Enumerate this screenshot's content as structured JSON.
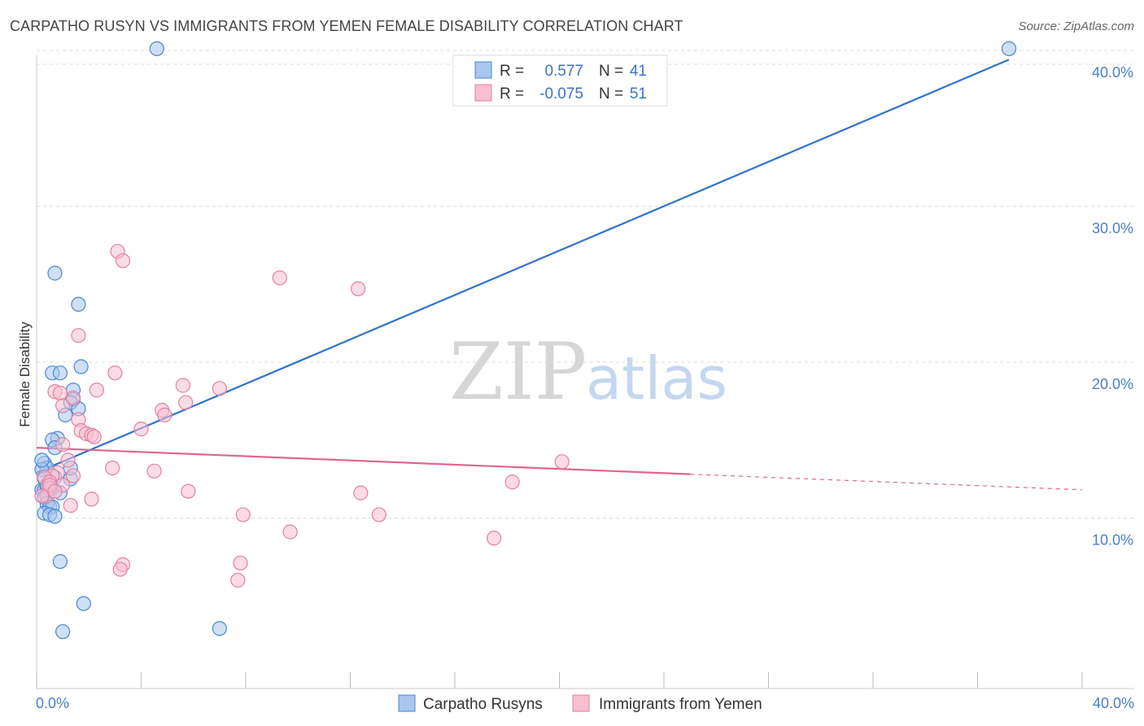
{
  "header": {
    "title": "CARPATHO RUSYN VS IMMIGRANTS FROM YEMEN FEMALE DISABILITY CORRELATION CHART",
    "source": "Source: ZipAtlas.com"
  },
  "watermark": {
    "zip": "ZIP",
    "atlas": "atlas"
  },
  "legend": {
    "rows": [
      {
        "r_label": "R =",
        "r_value": "0.577",
        "n_label": "N =",
        "n_value": "41"
      },
      {
        "r_label": "R =",
        "r_value": "-0.075",
        "n_label": "N =",
        "n_value": "51"
      }
    ]
  },
  "bottom_legend": {
    "series1": "Carpatho Rusyns",
    "series2": "Immigrants from Yemen"
  },
  "colors": {
    "blue_fill": "#a8c6ee",
    "blue_stroke": "#4a86d6",
    "blue_line": "#2f72cc",
    "pink_fill": "#f7bfd0",
    "pink_stroke": "#e57fa0",
    "pink_line": "#e0648f",
    "grid": "#dddddd",
    "axis_text": "#4a7ec9"
  },
  "chart_data": {
    "type": "scatter",
    "title": "CARPATHO RUSYN VS IMMIGRANTS FROM YEMEN FEMALE DISABILITY CORRELATION CHART",
    "xlabel": "",
    "ylabel": "Female Disability",
    "xlim": [
      0,
      40
    ],
    "ylim": [
      0,
      40
    ],
    "x_tick_labels": [
      "0.0%",
      "40.0%"
    ],
    "y_ticks": [
      {
        "value": 10,
        "label": "10.0%"
      },
      {
        "value": 20,
        "label": "20.0%"
      },
      {
        "value": 30,
        "label": "30.0%"
      },
      {
        "value": 40,
        "label": "40.0%"
      }
    ],
    "series": [
      {
        "name": "Carpatho Rusyns",
        "r": 0.577,
        "n": 41,
        "trend": {
          "x0": 0.0,
          "y0": 13.8,
          "x1": 37.2,
          "y1": 40.3,
          "dashed_to": null
        },
        "points": [
          [
            4.6,
            41.0
          ],
          [
            37.2,
            41.0
          ],
          [
            0.7,
            26.6
          ],
          [
            1.6,
            24.6
          ],
          [
            1.7,
            20.6
          ],
          [
            0.6,
            20.2
          ],
          [
            0.9,
            20.2
          ],
          [
            1.4,
            19.1
          ],
          [
            1.4,
            18.5
          ],
          [
            1.3,
            18.3
          ],
          [
            1.6,
            17.9
          ],
          [
            1.1,
            17.5
          ],
          [
            0.8,
            16.0
          ],
          [
            0.6,
            15.9
          ],
          [
            0.7,
            15.4
          ],
          [
            0.3,
            14.4
          ],
          [
            0.4,
            14.1
          ],
          [
            0.2,
            14.0
          ],
          [
            0.7,
            13.5
          ],
          [
            1.3,
            13.4
          ],
          [
            0.2,
            12.7
          ],
          [
            0.3,
            12.7
          ],
          [
            0.5,
            12.8
          ],
          [
            0.6,
            12.8
          ],
          [
            0.9,
            12.5
          ],
          [
            0.3,
            12.2
          ],
          [
            0.4,
            11.8
          ],
          [
            0.5,
            11.6
          ],
          [
            0.6,
            11.6
          ],
          [
            0.3,
            11.2
          ],
          [
            0.5,
            11.1
          ],
          [
            0.7,
            11.0
          ],
          [
            1.3,
            14.1
          ],
          [
            0.4,
            12.9
          ],
          [
            0.2,
            14.6
          ],
          [
            0.9,
            8.1
          ],
          [
            1.8,
            5.4
          ],
          [
            1.0,
            3.6
          ],
          [
            7.0,
            3.8
          ],
          [
            0.3,
            13.4
          ],
          [
            0.4,
            13.0
          ]
        ]
      },
      {
        "name": "Immigrants from Yemen",
        "r": -0.075,
        "n": 51,
        "trend": {
          "x0": 0.0,
          "y0": 15.4,
          "x1": 25.0,
          "y1": 13.7,
          "dashed_to": {
            "x": 40.0,
            "y": 12.7
          }
        },
        "points": [
          [
            3.1,
            28.0
          ],
          [
            3.3,
            27.4
          ],
          [
            9.3,
            26.3
          ],
          [
            12.3,
            25.6
          ],
          [
            1.6,
            22.6
          ],
          [
            3.0,
            20.2
          ],
          [
            5.6,
            19.4
          ],
          [
            7.0,
            19.2
          ],
          [
            2.3,
            19.1
          ],
          [
            0.7,
            19.0
          ],
          [
            0.9,
            18.9
          ],
          [
            1.4,
            18.6
          ],
          [
            5.7,
            18.3
          ],
          [
            1.0,
            18.1
          ],
          [
            4.8,
            17.8
          ],
          [
            4.9,
            17.5
          ],
          [
            1.6,
            17.2
          ],
          [
            4.0,
            16.6
          ],
          [
            1.7,
            16.5
          ],
          [
            1.9,
            16.3
          ],
          [
            2.1,
            16.2
          ],
          [
            2.2,
            16.1
          ],
          [
            1.0,
            15.6
          ],
          [
            1.2,
            14.6
          ],
          [
            2.9,
            14.1
          ],
          [
            4.5,
            13.9
          ],
          [
            20.1,
            14.5
          ],
          [
            0.8,
            13.8
          ],
          [
            0.6,
            13.6
          ],
          [
            0.3,
            13.5
          ],
          [
            0.5,
            13.2
          ],
          [
            0.5,
            12.8
          ],
          [
            1.0,
            13.0
          ],
          [
            0.4,
            12.3
          ],
          [
            5.8,
            12.6
          ],
          [
            12.4,
            12.5
          ],
          [
            2.1,
            12.1
          ],
          [
            0.2,
            12.3
          ],
          [
            1.3,
            11.7
          ],
          [
            7.9,
            11.1
          ],
          [
            13.1,
            11.1
          ],
          [
            9.7,
            10.0
          ],
          [
            17.5,
            9.6
          ],
          [
            18.2,
            13.2
          ],
          [
            3.3,
            7.9
          ],
          [
            3.2,
            7.6
          ],
          [
            7.8,
            8.0
          ],
          [
            7.7,
            6.9
          ],
          [
            0.5,
            13.0
          ],
          [
            0.7,
            12.6
          ],
          [
            1.4,
            13.6
          ]
        ]
      }
    ]
  }
}
